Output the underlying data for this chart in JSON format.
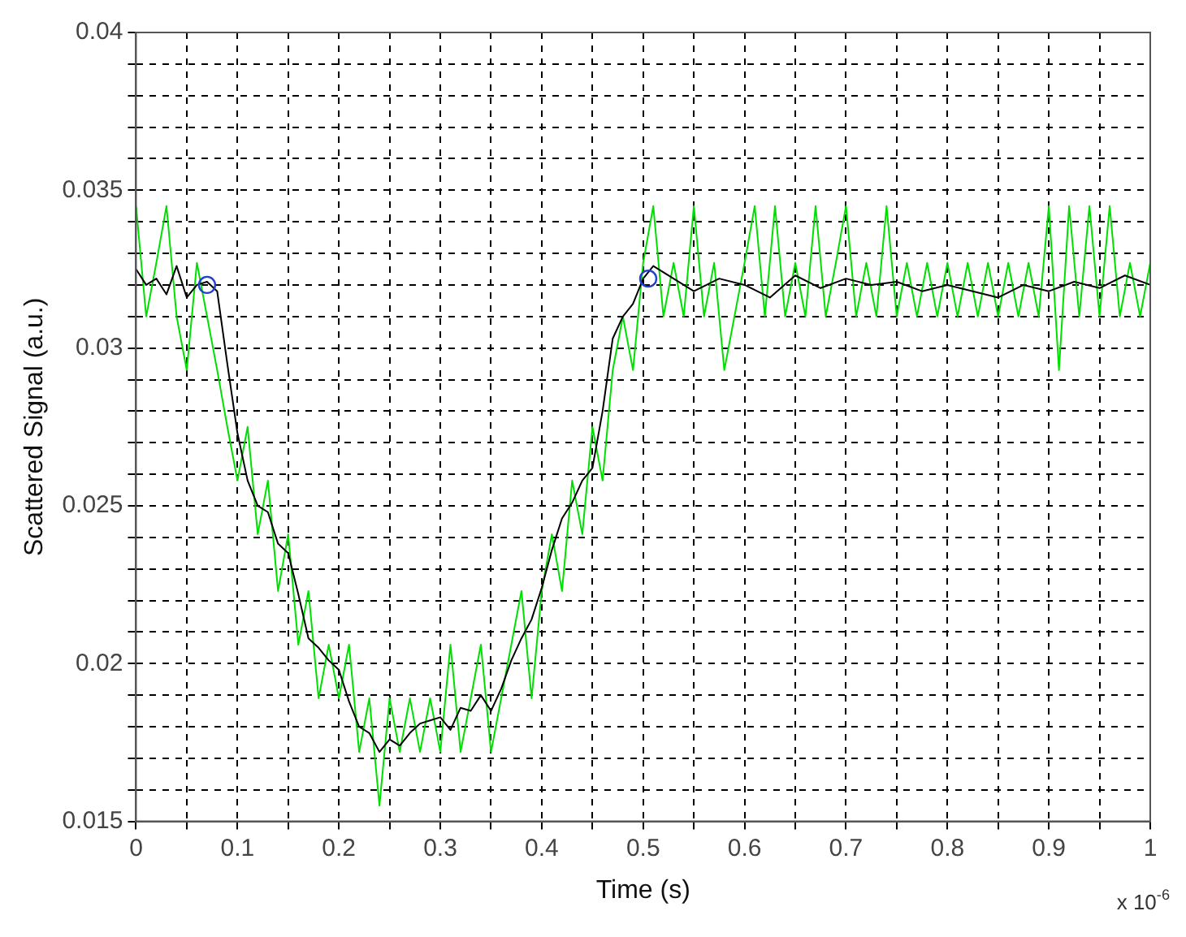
{
  "chart_data": {
    "type": "line",
    "xlabel": "Time (s)",
    "ylabel": "Scattered Signal (a.u.)",
    "annotations": [
      "x 10$^{-6}$"
    ],
    "xlim": [
      0,
      1
    ],
    "ylim": [
      0.015,
      0.04
    ],
    "xticks": [
      0,
      {
        "value": 0.05,
        "label": null
      },
      0.1,
      {
        "value": 0.15,
        "label": null
      },
      0.2,
      {
        "value": 0.25,
        "label": null
      },
      0.3,
      {
        "value": 0.35,
        "label": null
      },
      0.4,
      {
        "value": 0.45,
        "label": null
      },
      0.5,
      {
        "value": 0.55,
        "label": null
      },
      0.6,
      {
        "value": 0.65,
        "label": null
      },
      0.7,
      {
        "value": 0.75,
        "label": null
      },
      0.8,
      {
        "value": 0.85,
        "label": null
      },
      0.9,
      {
        "value": 0.95,
        "label": null
      },
      1
    ],
    "yticks": [
      0.015,
      {
        "value": 0.016,
        "label": null
      },
      {
        "value": 0.017,
        "label": null
      },
      {
        "value": 0.018,
        "label": null
      },
      {
        "value": 0.019,
        "label": null
      },
      0.02,
      {
        "value": 0.021,
        "label": null
      },
      {
        "value": 0.022,
        "label": null
      },
      {
        "value": 0.023,
        "label": null
      },
      {
        "value": 0.024,
        "label": null
      },
      0.025,
      {
        "value": 0.026,
        "label": null
      },
      {
        "value": 0.027,
        "label": null
      },
      {
        "value": 0.028,
        "label": null
      },
      {
        "value": 0.029,
        "label": null
      },
      0.03,
      {
        "value": 0.031,
        "label": null
      },
      {
        "value": 0.032,
        "label": null
      },
      {
        "value": 0.033,
        "label": null
      },
      {
        "value": 0.034,
        "label": null
      },
      0.035,
      {
        "value": 0.036,
        "label": null
      },
      {
        "value": 0.037,
        "label": null
      },
      {
        "value": 0.038,
        "label": null
      },
      {
        "value": 0.039,
        "label": null
      },
      0.04
    ],
    "grid": true,
    "legend": false,
    "series": [
      {
        "type": "line",
        "color": "#00e000",
        "x": [
          0,
          0.01,
          0.02,
          0.03,
          0.04,
          0.05,
          0.06,
          0.07,
          0.08,
          0.09,
          0.1,
          0.11,
          0.12,
          0.13,
          0.14,
          0.15,
          0.16,
          0.17,
          0.18,
          0.19,
          0.2,
          0.21,
          0.22,
          0.23,
          0.24,
          0.25,
          0.26,
          0.27,
          0.28,
          0.29,
          0.3,
          0.31,
          0.32,
          0.33,
          0.34,
          0.35,
          0.36,
          0.37,
          0.38,
          0.39,
          0.4,
          0.41,
          0.42,
          0.43,
          0.44,
          0.45,
          0.46,
          0.47,
          0.48,
          0.49,
          0.5,
          0.51,
          0.52,
          0.53,
          0.54,
          0.55,
          0.56,
          0.57,
          0.58,
          0.59,
          0.6,
          0.61,
          0.62,
          0.63,
          0.64,
          0.65,
          0.66,
          0.67,
          0.68,
          0.69,
          0.7,
          0.71,
          0.72,
          0.73,
          0.74,
          0.75,
          0.76,
          0.77,
          0.78,
          0.79,
          0.8,
          0.81,
          0.82,
          0.83,
          0.84,
          0.85,
          0.86,
          0.87,
          0.88,
          0.89,
          0.9,
          0.91,
          0.92,
          0.93,
          0.94,
          0.95,
          0.96,
          0.97,
          0.98,
          0.99,
          1
        ],
        "values": [
          0.0345,
          0.031,
          0.0327,
          0.0345,
          0.031,
          0.0293,
          0.0327,
          0.031,
          0.0293,
          0.0275,
          0.0258,
          0.0275,
          0.0241,
          0.0258,
          0.0223,
          0.0241,
          0.0206,
          0.0223,
          0.0189,
          0.0206,
          0.0189,
          0.0206,
          0.0172,
          0.0189,
          0.0155,
          0.0189,
          0.0172,
          0.0189,
          0.0172,
          0.0189,
          0.0172,
          0.0206,
          0.0172,
          0.0189,
          0.0206,
          0.0172,
          0.0189,
          0.0206,
          0.0223,
          0.0189,
          0.0223,
          0.0241,
          0.0223,
          0.0258,
          0.0241,
          0.0275,
          0.0258,
          0.0293,
          0.031,
          0.0293,
          0.0327,
          0.0345,
          0.031,
          0.0327,
          0.031,
          0.0345,
          0.031,
          0.0327,
          0.0293,
          0.031,
          0.0327,
          0.0345,
          0.031,
          0.0345,
          0.031,
          0.0327,
          0.031,
          0.0345,
          0.031,
          0.0327,
          0.0345,
          0.031,
          0.0327,
          0.031,
          0.0345,
          0.031,
          0.0327,
          0.031,
          0.0327,
          0.031,
          0.0327,
          0.031,
          0.0327,
          0.031,
          0.0327,
          0.031,
          0.0327,
          0.031,
          0.0327,
          0.031,
          0.0345,
          0.0293,
          0.0345,
          0.031,
          0.0345,
          0.031,
          0.0345,
          0.031,
          0.0327,
          0.031,
          0.0327
        ]
      },
      {
        "type": "line",
        "color": "#000000",
        "x": [
          0,
          0.01,
          0.02,
          0.03,
          0.04,
          0.05,
          0.06,
          0.07,
          0.08,
          0.09,
          0.1,
          0.11,
          0.12,
          0.13,
          0.14,
          0.15,
          0.16,
          0.17,
          0.18,
          0.19,
          0.2,
          0.21,
          0.22,
          0.23,
          0.24,
          0.25,
          0.26,
          0.27,
          0.28,
          0.29,
          0.3,
          0.31,
          0.32,
          0.33,
          0.34,
          0.35,
          0.36,
          0.37,
          0.38,
          0.39,
          0.4,
          0.41,
          0.42,
          0.43,
          0.44,
          0.45,
          0.46,
          0.47,
          0.48,
          0.49,
          0.5,
          0.51,
          0.52,
          0.55,
          0.575,
          0.6,
          0.625,
          0.65,
          0.675,
          0.7,
          0.725,
          0.75,
          0.775,
          0.8,
          0.825,
          0.85,
          0.875,
          0.9,
          0.925,
          0.95,
          0.975,
          1
        ],
        "values": [
          0.0325,
          0.032,
          0.0322,
          0.0317,
          0.0326,
          0.0316,
          0.032,
          0.0321,
          0.0318,
          0.0295,
          0.0273,
          0.0258,
          0.025,
          0.0248,
          0.0238,
          0.0235,
          0.0222,
          0.0208,
          0.0205,
          0.0201,
          0.0198,
          0.0188,
          0.018,
          0.0178,
          0.0172,
          0.0176,
          0.0174,
          0.0178,
          0.0181,
          0.0182,
          0.0183,
          0.0179,
          0.0186,
          0.0185,
          0.019,
          0.0185,
          0.0192,
          0.0201,
          0.0208,
          0.0214,
          0.0224,
          0.0236,
          0.0246,
          0.0251,
          0.0258,
          0.0262,
          0.028,
          0.0303,
          0.031,
          0.0314,
          0.0322,
          0.0326,
          0.0324,
          0.0318,
          0.0322,
          0.032,
          0.0316,
          0.0323,
          0.0319,
          0.0322,
          0.032,
          0.0321,
          0.0318,
          0.032,
          0.0318,
          0.0316,
          0.032,
          0.0318,
          0.0321,
          0.0319,
          0.0323,
          0.032
        ]
      },
      {
        "type": "scatter",
        "color": "#2040d0",
        "marker": "circle",
        "x": [
          0.07,
          0.505
        ],
        "values": [
          0.032,
          0.0322
        ]
      }
    ]
  }
}
